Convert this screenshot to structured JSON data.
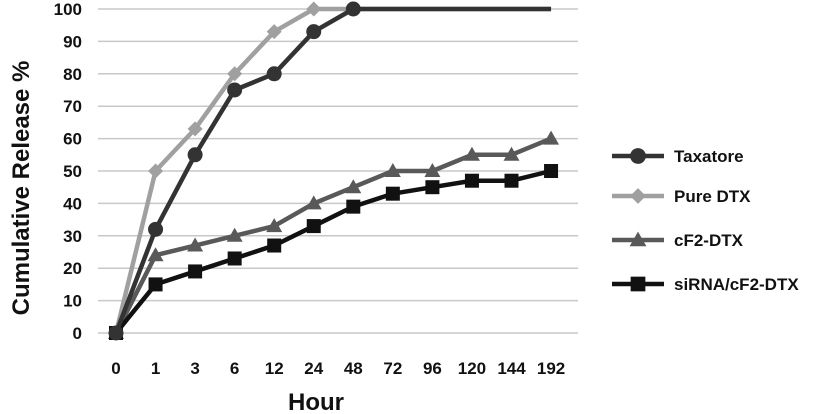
{
  "chart_data": {
    "type": "line",
    "title": "",
    "xlabel": "Hour",
    "ylabel": "Cumulative Release %",
    "categories": [
      "0",
      "1",
      "3",
      "6",
      "12",
      "24",
      "48",
      "72",
      "96",
      "120",
      "144",
      "192"
    ],
    "ylim": [
      0,
      100
    ],
    "yticks": [
      0,
      10,
      20,
      30,
      40,
      50,
      60,
      70,
      80,
      90,
      100
    ],
    "grid": "horizontal",
    "legend_position": "right",
    "series": [
      {
        "name": "Taxatore",
        "marker": "circle",
        "color": "#333333",
        "values": [
          0,
          32,
          55,
          75,
          80,
          93,
          100,
          100,
          100,
          100,
          100,
          100
        ]
      },
      {
        "name": "Pure DTX",
        "marker": "diamond",
        "color": "#a0a0a0",
        "values": [
          0,
          50,
          63,
          80,
          93,
          100,
          100,
          100,
          100,
          100,
          100,
          100
        ]
      },
      {
        "name": "cF2-DTX",
        "marker": "triangle",
        "color": "#595959",
        "values": [
          0,
          24,
          27,
          30,
          33,
          40,
          45,
          50,
          50,
          55,
          55,
          60
        ]
      },
      {
        "name": "siRNA/cF2-DTX",
        "marker": "square",
        "color": "#111111",
        "values": [
          0,
          15,
          19,
          23,
          27,
          33,
          39,
          43,
          45,
          47,
          47,
          50
        ]
      }
    ]
  }
}
